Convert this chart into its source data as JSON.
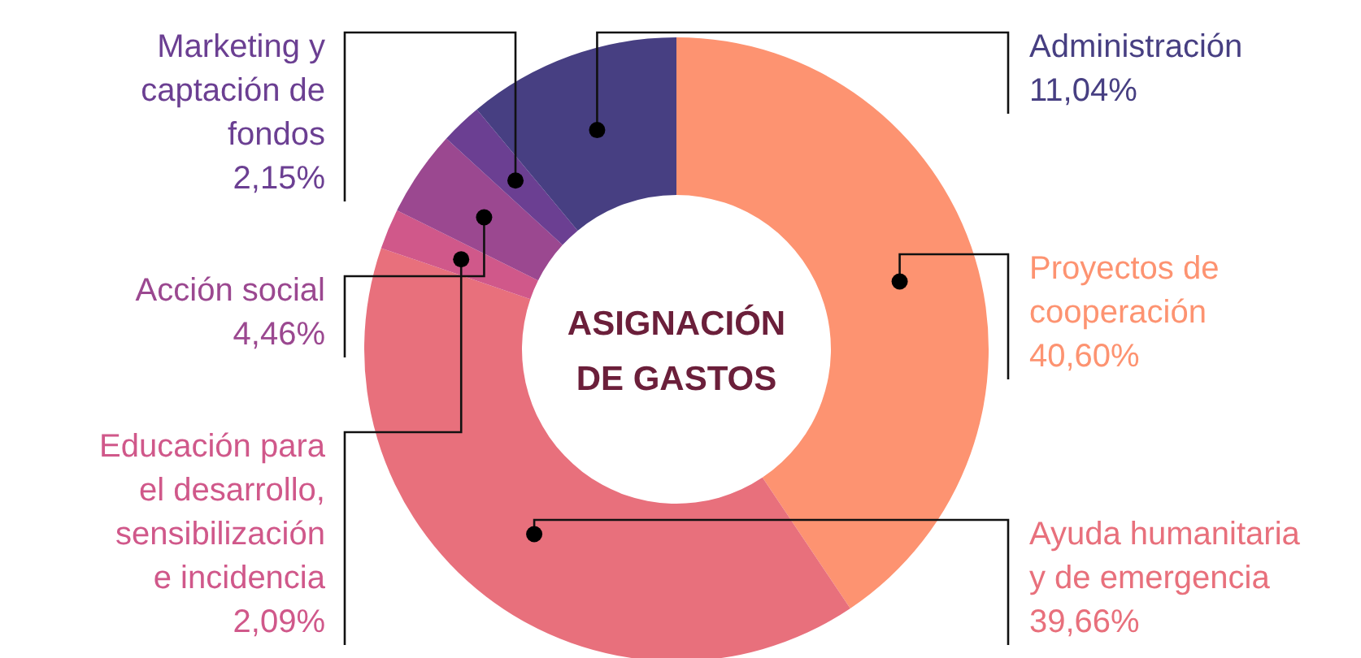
{
  "chart_data": {
    "type": "donut",
    "title": "ASIGNACIÓN DE GASTOS",
    "categories": [
      "Proyectos de cooperación",
      "Ayuda humanitaria y de emergencia",
      "Educación para el desarrollo, sensibilización e incidencia",
      "Acción social",
      "Marketing y captación de fondos",
      "Administración"
    ],
    "values": [
      40.6,
      39.66,
      2.09,
      4.46,
      2.15,
      11.04
    ],
    "value_labels": [
      "40,60%",
      "39,66%",
      "2,09%",
      "4,46%",
      "2,15%",
      "11,04%"
    ],
    "colors": [
      "#fd9371",
      "#e8707c",
      "#d0588a",
      "#9b4890",
      "#6b3f92",
      "#473f82"
    ]
  }
}
